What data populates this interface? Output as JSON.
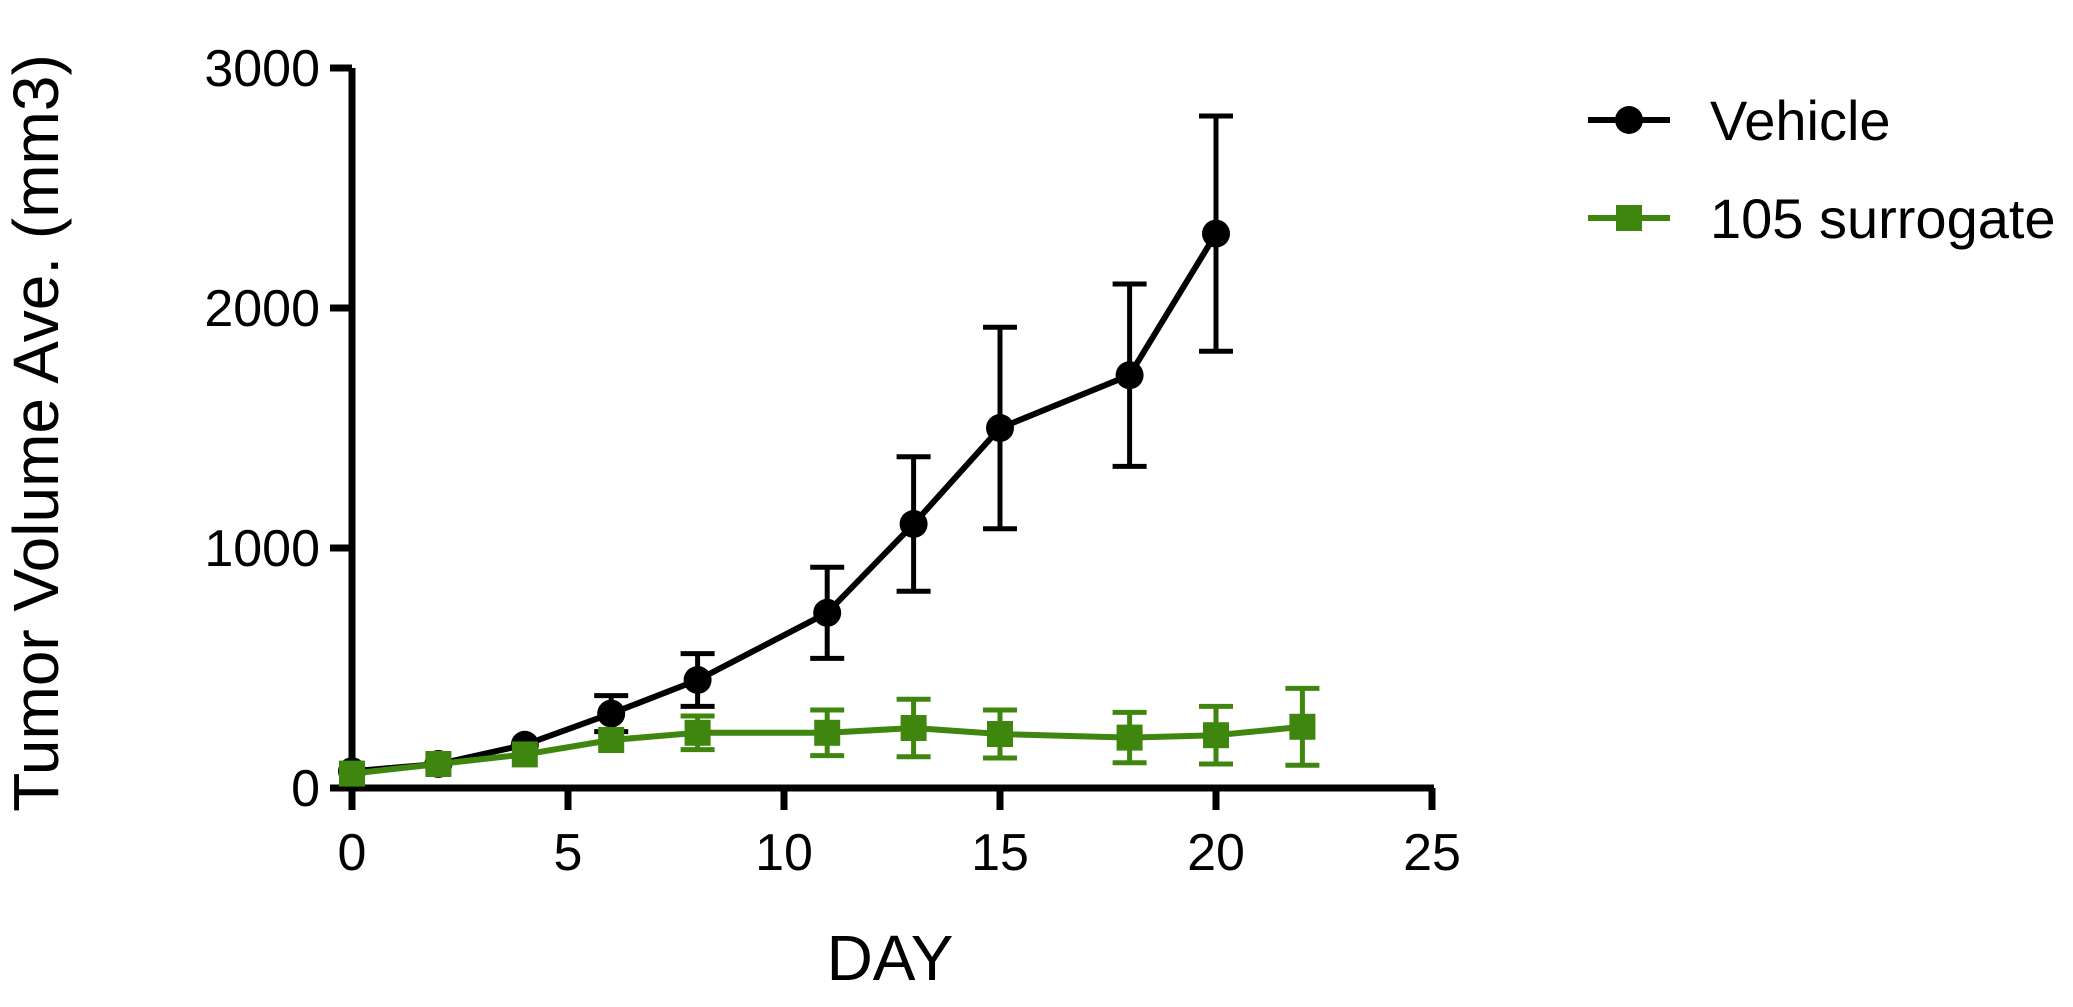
{
  "chart_data": {
    "type": "line",
    "title": "",
    "xlabel": "DAY",
    "ylabel": "Tumor Volume  Ave. (mm3)",
    "xlim": [
      0,
      25
    ],
    "ylim": [
      0,
      3000
    ],
    "xticks": [
      0,
      5,
      10,
      15,
      20,
      25
    ],
    "yticks": [
      0,
      1000,
      2000,
      3000
    ],
    "grid": false,
    "legend_position": "top-right",
    "series": [
      {
        "name": "Vehicle",
        "color": "#000000",
        "marker": "circle",
        "x": [
          0,
          2,
          4,
          6,
          8,
          11,
          13,
          15,
          18,
          20
        ],
        "y": [
          70,
          100,
          180,
          310,
          450,
          730,
          1100,
          1500,
          1720,
          2310
        ],
        "error": [
          0,
          0,
          0,
          75,
          110,
          190,
          280,
          420,
          380,
          490
        ]
      },
      {
        "name": "105 surrogate",
        "color": "#3f860f",
        "marker": "square",
        "x": [
          0,
          2,
          4,
          6,
          8,
          11,
          13,
          15,
          18,
          20,
          22
        ],
        "y": [
          60,
          100,
          140,
          200,
          230,
          230,
          250,
          225,
          210,
          220,
          255
        ],
        "error": [
          0,
          0,
          0,
          0,
          70,
          95,
          120,
          100,
          105,
          120,
          160
        ]
      }
    ]
  }
}
